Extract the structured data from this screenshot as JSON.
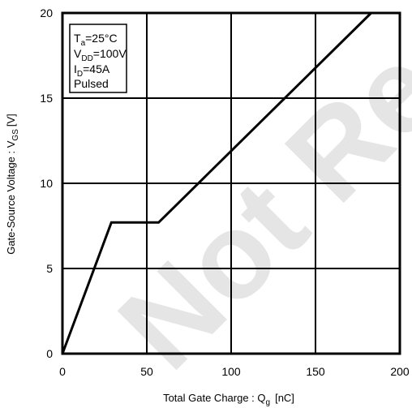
{
  "chart_data": {
    "type": "line",
    "xlabel": {
      "main": "Total Gate Charge : Q",
      "sub": "g",
      "unit": "[nC]"
    },
    "ylabel": {
      "main": "Gate-Source Voltage : V",
      "sub": "GS",
      "unit": "[V]"
    },
    "xlim": [
      0,
      200
    ],
    "ylim": [
      0,
      20
    ],
    "xticks": [
      "0",
      "50",
      "100",
      "150",
      "200"
    ],
    "yticks": [
      "0",
      "5",
      "10",
      "15",
      "20"
    ],
    "grid": true,
    "series": [
      {
        "x": [
          0,
          29,
          57,
          183
        ],
        "y": [
          0,
          7.7,
          7.7,
          20
        ]
      }
    ],
    "legend": {
      "placement": "top-left",
      "lines": [
        {
          "main": "T",
          "sub": "a",
          "rest": "=25°C"
        },
        {
          "main": "V",
          "sub": "DD",
          "rest": "=100V"
        },
        {
          "main": "I",
          "sub": "D",
          "rest": "=45A"
        },
        {
          "main": "Pulsed",
          "sub": "",
          "rest": ""
        }
      ]
    },
    "watermark": "Not Re"
  }
}
